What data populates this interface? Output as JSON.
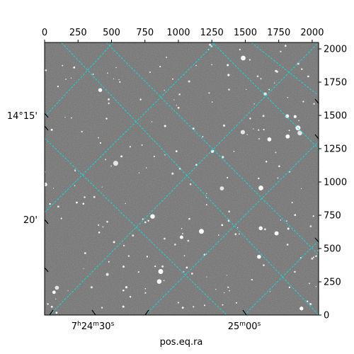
{
  "chart_data": {
    "type": "image",
    "xlabel": "pos.eq.ra",
    "ylabel": "",
    "pixel_axis_x": {
      "range": [
        0,
        2048
      ],
      "tick_labels": [
        "0",
        "250",
        "500",
        "750",
        "1000",
        "1250",
        "1500",
        "1750",
        "2000"
      ]
    },
    "pixel_axis_y": {
      "range": [
        0,
        2048
      ],
      "tick_labels": [
        "0",
        "250",
        "500",
        "750",
        "1000",
        "1250",
        "1500",
        "1750",
        "2000"
      ]
    },
    "ra_ticks": [
      {
        "label_h": "7",
        "label_m": "24",
        "label_s": "30",
        "suffix_h": "h",
        "suffix_m": "m",
        "suffix_s": "s"
      },
      {
        "label_m": "25",
        "label_s": "00",
        "suffix_m": "m",
        "suffix_s": "s"
      }
    ],
    "dec_ticks": [
      "14°15'",
      "20'"
    ],
    "grid": true,
    "grid_color": "#00e5e5",
    "colormap": "gray",
    "background_color": "#6e6e6e"
  }
}
